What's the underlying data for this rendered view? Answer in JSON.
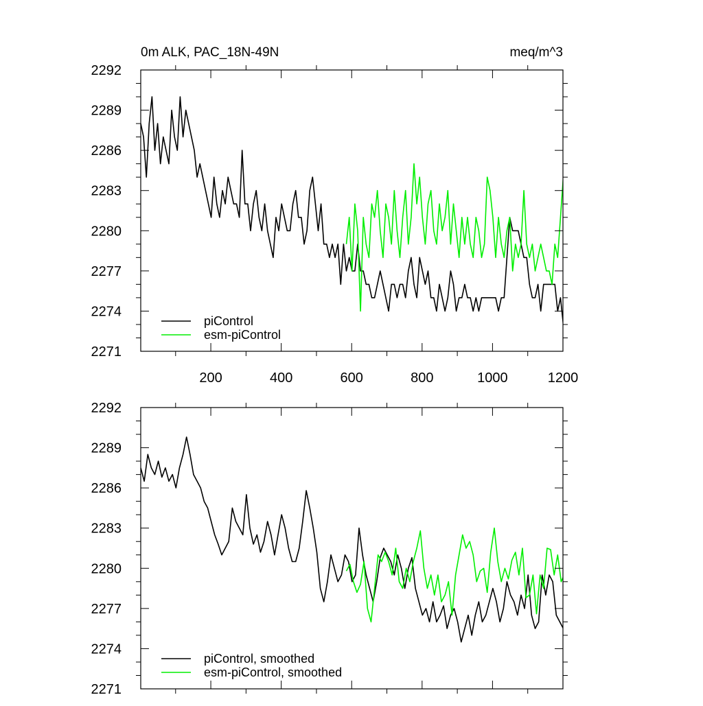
{
  "figure": {
    "title_left": "0m ALK, PAC_18N-49N",
    "title_right": "meq/m^3"
  },
  "colors": {
    "piControl": "#000000",
    "esm_piControl": "#00ee00",
    "axis": "#000000"
  },
  "chart_data": [
    {
      "type": "line",
      "xlim": [
        1,
        1200
      ],
      "ylim": [
        2271,
        2292
      ],
      "xticks": [
        200,
        400,
        600,
        800,
        1000,
        1200
      ],
      "xtick_labels": [
        "200",
        "400",
        "600",
        "800",
        "1000",
        "1200"
      ],
      "yticks": [
        2271,
        2274,
        2277,
        2280,
        2283,
        2286,
        2289,
        2292
      ],
      "ytick_labels": [
        "2271",
        "2274",
        "2277",
        "2280",
        "2283",
        "2286",
        "2289",
        "2292"
      ],
      "legend_position": "bottom-left",
      "series": [
        {
          "name": "piControl",
          "color": "#000000",
          "x_start": 1,
          "x_step": 8,
          "values": [
            2288,
            2287,
            2284,
            2288,
            2290,
            2286,
            2288,
            2285,
            2287,
            2286,
            2285,
            2289,
            2287,
            2286,
            2290,
            2287,
            2289,
            2288,
            2287,
            2286,
            2284,
            2285,
            2284,
            2283,
            2282,
            2281,
            2284,
            2282,
            2281,
            2283,
            2282,
            2284,
            2283,
            2282,
            2282,
            2281,
            2286,
            2282,
            2282,
            2280,
            2282,
            2283,
            2281,
            2280,
            2282,
            2280,
            2279,
            2278,
            2281,
            2280,
            2282,
            2281,
            2280,
            2280,
            2282,
            2283,
            2281,
            2281,
            2279,
            2280,
            2283,
            2284,
            2282,
            2280,
            2282,
            2279,
            2279,
            2278,
            2279,
            2278,
            2279,
            2276,
            2279,
            2277,
            2278,
            2277,
            2277,
            2279,
            2277,
            2277,
            2276,
            2276,
            2275,
            2275,
            2276,
            2277,
            2276,
            2275,
            2274,
            2276,
            2276,
            2275,
            2276,
            2276,
            2275,
            2277,
            2278,
            2276,
            2275,
            2278,
            2277,
            2276,
            2277,
            2275,
            2275,
            2274,
            2276,
            2275,
            2274,
            2275,
            2277,
            2276,
            2274,
            2275,
            2275,
            2276,
            2275,
            2275,
            2274,
            2275,
            2274,
            2275,
            2275,
            2275,
            2275,
            2275,
            2275,
            2274,
            2275,
            2275,
            2278,
            2281,
            2280,
            2280,
            2280,
            2279,
            2278,
            2278,
            2276,
            2275,
            2275,
            2276,
            2274,
            2276,
            2276,
            2276,
            2276,
            2276,
            2274,
            2275,
            2273
          ]
        },
        {
          "name": "esm-piControl",
          "color": "#00ee00",
          "x_start": 585,
          "x_step": 8,
          "values": [
            2279,
            2281,
            2277,
            2282,
            2280,
            2274,
            2281,
            2279,
            2278,
            2282,
            2281,
            2283,
            2280,
            2278,
            2282,
            2281,
            2279,
            2283,
            2280,
            2278,
            2281,
            2283,
            2279,
            2281,
            2285,
            2282,
            2284,
            2281,
            2279,
            2282,
            2283,
            2280,
            2279,
            2282,
            2280,
            2281,
            2283,
            2279,
            2282,
            2280,
            2278,
            2281,
            2279,
            2281,
            2279,
            2278,
            2281,
            2280,
            2278,
            2279,
            2284,
            2283,
            2281,
            2278,
            2281,
            2279,
            2278,
            2280,
            2281,
            2277,
            2279,
            2278,
            2279,
            2283,
            2279,
            2278,
            2279,
            2277,
            2278,
            2279,
            2278,
            2277,
            2277,
            2276,
            2279,
            2278,
            2281,
            2284
          ]
        }
      ]
    },
    {
      "type": "line",
      "xlim": [
        1,
        1200
      ],
      "ylim": [
        2271,
        2292
      ],
      "xticks": [
        200,
        400,
        600,
        800,
        1000,
        1200
      ],
      "yticks": [
        2271,
        2274,
        2277,
        2280,
        2283,
        2286,
        2289,
        2292
      ],
      "ytick_labels": [
        "2271",
        "2274",
        "2277",
        "2280",
        "2283",
        "2286",
        "2289",
        "2292"
      ],
      "legend_position": "bottom-left",
      "series": [
        {
          "name": "piControl, smoothed",
          "color": "#000000",
          "x_start": 1,
          "x_step": 10,
          "values": [
            2287.5,
            2286.5,
            2288.5,
            2287.5,
            2287,
            2288,
            2286.8,
            2287.5,
            2286.5,
            2287,
            2286,
            2287.5,
            2288.5,
            2289.8,
            2288.5,
            2287,
            2286.5,
            2286,
            2285,
            2284.5,
            2283.5,
            2282.5,
            2281.8,
            2281,
            2281.5,
            2282,
            2284.5,
            2283.5,
            2283,
            2282.5,
            2285.5,
            2283,
            2281.8,
            2282.5,
            2281.2,
            2282,
            2283.5,
            2282.5,
            2281,
            2282.5,
            2284,
            2283,
            2281.5,
            2280.5,
            2280.5,
            2281.5,
            2283.5,
            2285.8,
            2284.5,
            2283,
            2281.2,
            2278.5,
            2277.5,
            2279,
            2281,
            2280,
            2279,
            2279.5,
            2281,
            2280.5,
            2279,
            2279.5,
            2283,
            2281,
            2279.5,
            2278.5,
            2277.5,
            2279,
            2280.8,
            2281.5,
            2281,
            2280.5,
            2279.5,
            2281,
            2280,
            2278.5,
            2280,
            2280.8,
            2278.5,
            2277.5,
            2276.5,
            2277,
            2276,
            2277.5,
            2276,
            2276.5,
            2277.2,
            2275.5,
            2276.5,
            2277,
            2276,
            2274.5,
            2275.5,
            2276.5,
            2275,
            2276.5,
            2277.5,
            2276,
            2276.5,
            2277.5,
            2278.5,
            2277.5,
            2276,
            2277,
            2279,
            2278,
            2277.5,
            2276.5,
            2278,
            2277,
            2279.5,
            2276.5,
            2275.5,
            2276,
            2279.5,
            2278,
            2279.5,
            2279,
            2276.5,
            2276,
            2275.5,
            2276.5,
            2274,
            2275,
            2276,
            2275,
            2276.5,
            2277.5,
            2276,
            2276.5,
            2278.5,
            2280.5,
            2281,
            2281,
            2279.5,
            2278,
            2279.5,
            2277.5,
            2276,
            2278,
            2281,
            2277,
            2275.5,
            2276,
            2277.5,
            2274.5,
            2275.5,
            2277,
            2276,
            2275,
            2274.3
          ]
        },
        {
          "name": "esm-piControl, smoothed",
          "color": "#00ee00",
          "x_start": 585,
          "x_step": 10,
          "values": [
            2279.8,
            2280.3,
            2279,
            2278.2,
            2278.8,
            2280.5,
            2277,
            2276,
            2278.5,
            2281,
            2280.5,
            2281.2,
            2280.5,
            2279.5,
            2281.5,
            2279,
            2278.5,
            2280,
            2279,
            2280.5,
            2281.5,
            2282.8,
            2280,
            2278.5,
            2279.5,
            2278,
            2279.5,
            2277.5,
            2278,
            2279,
            2276.5,
            2279.5,
            2281,
            2282.5,
            2281.5,
            2282,
            2281,
            2279,
            2279.8,
            2280,
            2278.2,
            2281.2,
            2283,
            2280.5,
            2279,
            2280,
            2279.2,
            2280.6,
            2281.2,
            2279.5,
            2281.5,
            2277.8,
            2278,
            2279.5,
            2276.6,
            2279.5,
            2278.5,
            2281.5,
            2281.4,
            2279.5,
            2281,
            2279,
            2279.6,
            2278,
            2279.4,
            2279.5,
            2278.2,
            2281.5,
            2282.2,
            2283,
            2280,
            2279,
            2278.5
          ]
        }
      ]
    }
  ]
}
